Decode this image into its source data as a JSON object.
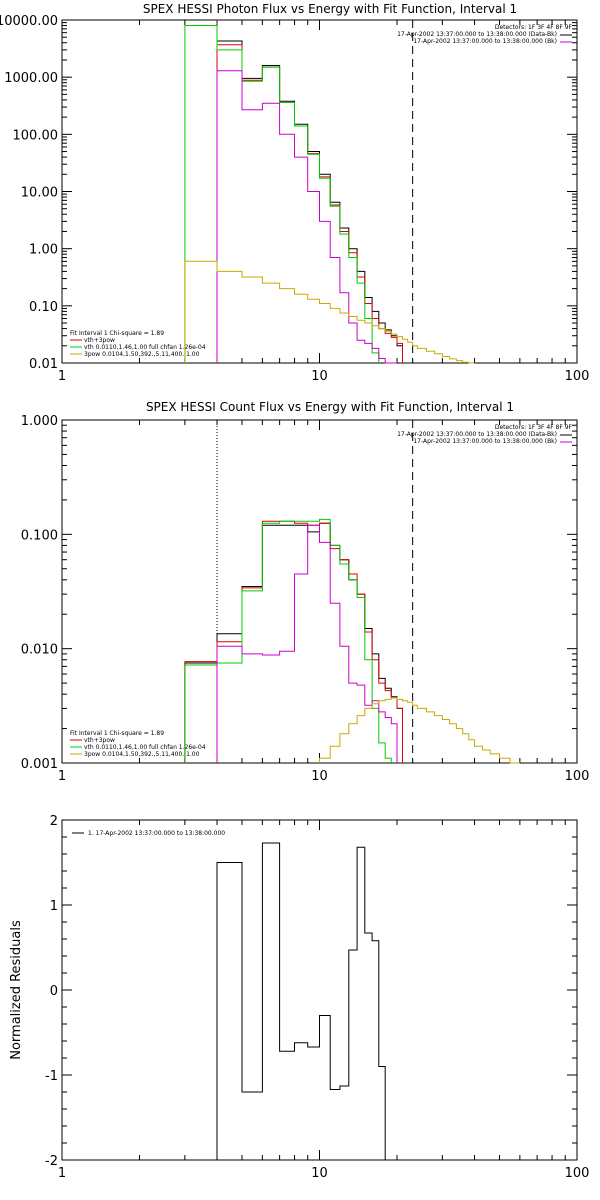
{
  "chart_data": [
    {
      "type": "line",
      "title": "SPEX HESSI Photon Flux vs Energy with Fit Function, Interval 1",
      "xlabel": "",
      "ylabel": "",
      "x_scale": "log",
      "y_scale": "log",
      "xlim": [
        1,
        100
      ],
      "ylim": [
        0.01,
        10000
      ],
      "x_ticks": [
        1,
        10,
        100
      ],
      "x_tick_labels": [
        "1",
        "10",
        "100"
      ],
      "y_ticks": [
        0.01,
        0.1,
        1,
        10,
        100,
        1000,
        10000
      ],
      "y_tick_labels": [
        "0.01",
        "0.10",
        "1.00",
        "10.00",
        "100.00",
        "1000.00",
        "10000.00"
      ],
      "top_right_text": [
        "Detectors: 1F 3F 4F 8F 9F",
        "17-Apr-2002 13:37:00.000 to 13:38:00.000 (Data-Bk)",
        "17-Apr-2002 13:37:00.000 to 13:38:00.000 (Bk)"
      ],
      "fit_text": [
        "Fit Interval 1    Chi-square = 1.89",
        "vth+3pow",
        "vth 0.0110,1.46,1.00  full chfan 1.26e-04",
        "3pow 0.0104,1.50,392.,5.11,400.,1.00"
      ],
      "vlines": [
        {
          "x": 4.0,
          "style": "dotted",
          "color": "#cc00cc"
        },
        {
          "x": 23.0,
          "style": "dashed",
          "color": "#000000"
        }
      ],
      "edges": [
        3,
        4,
        5,
        6,
        7,
        8,
        9,
        10,
        11,
        12,
        13,
        14,
        15,
        16,
        17,
        18,
        19,
        20,
        21,
        22,
        23,
        24,
        26,
        28,
        30,
        32,
        34,
        36,
        38,
        40,
        43,
        46,
        50
      ],
      "series": [
        {
          "color": "#000000",
          "values": [
            null,
            4300,
            950,
            1600,
            380,
            150,
            50,
            20,
            6.5,
            2.3,
            1.0,
            0.4,
            0.14,
            0.08,
            0.05,
            0.038,
            0.03,
            0.02,
            null,
            null,
            null,
            null,
            null,
            null,
            null,
            null,
            null,
            null,
            null,
            null,
            null,
            null
          ]
        },
        {
          "color": "#dd0000",
          "values": [
            null,
            3700,
            880,
            1500,
            360,
            140,
            46,
            18,
            5.8,
            2.0,
            0.85,
            0.32,
            0.11,
            0.06,
            0.04,
            0.033,
            0.028,
            0.022,
            null,
            null,
            null,
            null,
            null,
            null,
            null,
            null,
            null,
            null,
            null,
            null,
            null,
            null
          ]
        },
        {
          "color": "#00cc00",
          "values": [
            8000,
            3000,
            850,
            1500,
            360,
            140,
            45,
            17,
            5.5,
            1.8,
            0.7,
            0.25,
            0.06,
            0.015,
            null,
            null,
            null,
            null,
            null,
            null,
            null,
            null,
            null,
            null,
            null,
            null,
            null,
            null,
            null,
            null,
            null,
            null
          ]
        },
        {
          "color": "#cc00cc",
          "values": [
            null,
            1300,
            270,
            350,
            100,
            40,
            10,
            3,
            0.7,
            0.17,
            0.05,
            0.025,
            0.022,
            0.018,
            0.012,
            0.01,
            0.008,
            null,
            null,
            null,
            null,
            null,
            null,
            null,
            null,
            null,
            null,
            null,
            null,
            null,
            null,
            null
          ]
        },
        {
          "color": "#ccaa00",
          "values": [
            0.6,
            0.4,
            0.32,
            0.25,
            0.2,
            0.16,
            0.13,
            0.11,
            0.09,
            0.075,
            0.065,
            0.056,
            0.05,
            0.045,
            0.04,
            0.036,
            0.032,
            0.029,
            0.026,
            0.023,
            0.02,
            0.018,
            0.016,
            0.0145,
            0.013,
            0.0118,
            0.011,
            0.0103,
            0.01,
            null,
            null,
            null
          ]
        }
      ]
    },
    {
      "type": "line",
      "title": "SPEX HESSI Count Flux vs Energy with Fit Function, Interval 1",
      "xlabel": "",
      "ylabel": "",
      "x_scale": "log",
      "y_scale": "log",
      "xlim": [
        1,
        100
      ],
      "ylim": [
        0.001,
        1
      ],
      "x_ticks": [
        1,
        10,
        100
      ],
      "x_tick_labels": [
        "1",
        "10",
        "100"
      ],
      "y_ticks": [
        0.001,
        0.01,
        0.1,
        1
      ],
      "y_tick_labels": [
        "0.001",
        "0.010",
        "0.100",
        "1.000"
      ],
      "top_right_text": [
        "Detectors: 1F 3F 4F 8F 9F",
        "17-Apr-2002 13:37:00.000 to 13:38:00.000 (Data-Bk)",
        "17-Apr-2002 13:37:00.000 to 13:38:00.000 (Bk)"
      ],
      "fit_text": [
        "Fit Interval 1    Chi-square = 1.89",
        "vth+3pow",
        "vth 0.0110,1.46,1.00  full chfan 1.26e-04",
        "3pow 0.0104,1.50,392.,5.11,400.,1.00"
      ],
      "vlines": [
        {
          "x": 4.0,
          "style": "dotted",
          "color": "#000000"
        },
        {
          "x": 23.0,
          "style": "dashed",
          "color": "#000000"
        }
      ],
      "edges": [
        3,
        4,
        5,
        6,
        7,
        8,
        9,
        10,
        11,
        12,
        13,
        14,
        15,
        16,
        17,
        18,
        19,
        20,
        21,
        22,
        23,
        24,
        26,
        28,
        30,
        32,
        34,
        36,
        38,
        40,
        43,
        46,
        50,
        55,
        60,
        65,
        70,
        75,
        80,
        85,
        90
      ],
      "series": [
        {
          "color": "#000000",
          "values": [
            0.0075,
            0.0135,
            0.035,
            0.12,
            0.12,
            0.12,
            0.105,
            0.125,
            0.08,
            0.06,
            0.04,
            0.03,
            0.015,
            0.009,
            0.0055,
            0.0045,
            0.0038,
            0.003,
            null,
            null,
            null,
            null,
            null,
            null,
            null,
            null,
            null,
            null,
            null,
            null,
            null,
            null,
            null,
            null,
            null,
            null,
            null,
            null,
            null,
            null
          ]
        },
        {
          "color": "#dd0000",
          "values": [
            0.0077,
            0.0115,
            0.034,
            0.13,
            0.13,
            0.125,
            0.12,
            0.125,
            0.075,
            0.06,
            0.045,
            0.03,
            0.014,
            0.008,
            0.005,
            0.0043,
            0.0037,
            0.003,
            null,
            null,
            null,
            null,
            null,
            null,
            null,
            null,
            null,
            null,
            null,
            null,
            null,
            null,
            null,
            null,
            null,
            null,
            null,
            null,
            null,
            null
          ]
        },
        {
          "color": "#00cc00",
          "values": [
            0.0072,
            0.0075,
            0.032,
            0.125,
            0.13,
            0.13,
            0.13,
            0.135,
            0.08,
            0.055,
            0.04,
            0.028,
            0.008,
            0.003,
            0.0015,
            0.0011,
            null,
            null,
            null,
            null,
            null,
            null,
            null,
            null,
            null,
            null,
            null,
            null,
            null,
            null,
            null,
            null,
            null,
            null,
            null,
            null,
            null,
            null,
            null,
            null
          ]
        },
        {
          "color": "#cc00cc",
          "values": [
            null,
            0.0105,
            0.009,
            0.0088,
            0.0095,
            0.045,
            0.12,
            0.085,
            0.025,
            0.0105,
            0.005,
            0.0048,
            0.0032,
            0.0035,
            0.0028,
            0.0025,
            0.0022,
            null,
            null,
            null,
            null,
            null,
            null,
            null,
            null,
            null,
            null,
            null,
            null,
            null,
            null,
            null,
            null,
            null,
            null,
            null,
            null,
            null,
            null,
            null
          ]
        },
        {
          "color": "#ccaa00",
          "values": [
            null,
            null,
            null,
            null,
            null,
            null,
            null,
            0.0011,
            0.0014,
            0.0018,
            0.0022,
            0.0026,
            0.003,
            0.0033,
            0.0035,
            0.0036,
            0.0037,
            0.0036,
            0.0035,
            0.0034,
            0.0032,
            0.003,
            0.0028,
            0.0026,
            0.0024,
            0.0022,
            0.002,
            0.0018,
            0.0016,
            0.0014,
            0.0013,
            0.0012,
            0.0011,
            0.001,
            null,
            null,
            null,
            null,
            null,
            null
          ]
        }
      ]
    },
    {
      "type": "line",
      "title": "",
      "xlabel": "",
      "ylabel": "Normalized Residuals",
      "x_scale": "log",
      "y_scale": "linear",
      "xlim": [
        1,
        100
      ],
      "ylim": [
        -2,
        2
      ],
      "x_ticks": [
        1,
        10,
        100
      ],
      "x_tick_labels": [
        "1",
        "10",
        "100"
      ],
      "y_ticks": [
        -2,
        -1,
        0,
        1,
        2
      ],
      "y_tick_labels": [
        "-2",
        "-1",
        "0",
        "1",
        "2"
      ],
      "legend": "1. 17-Apr-2002 13:37:00.000 to 13:38:00.000",
      "edges": [
        4,
        5,
        6,
        7,
        8,
        9,
        10,
        11,
        12,
        13,
        14,
        15,
        16,
        17,
        18,
        19,
        20,
        22,
        23
      ],
      "series": [
        {
          "color": "#000000",
          "values": [
            1.5,
            -1.2,
            1.73,
            -0.72,
            -0.62,
            -0.67,
            -0.3,
            -1.17,
            -1.13,
            0.47,
            1.68,
            0.67,
            0.58,
            -0.9,
            -2.1,
            -2.1,
            -2.1,
            -2.1
          ]
        }
      ]
    }
  ]
}
